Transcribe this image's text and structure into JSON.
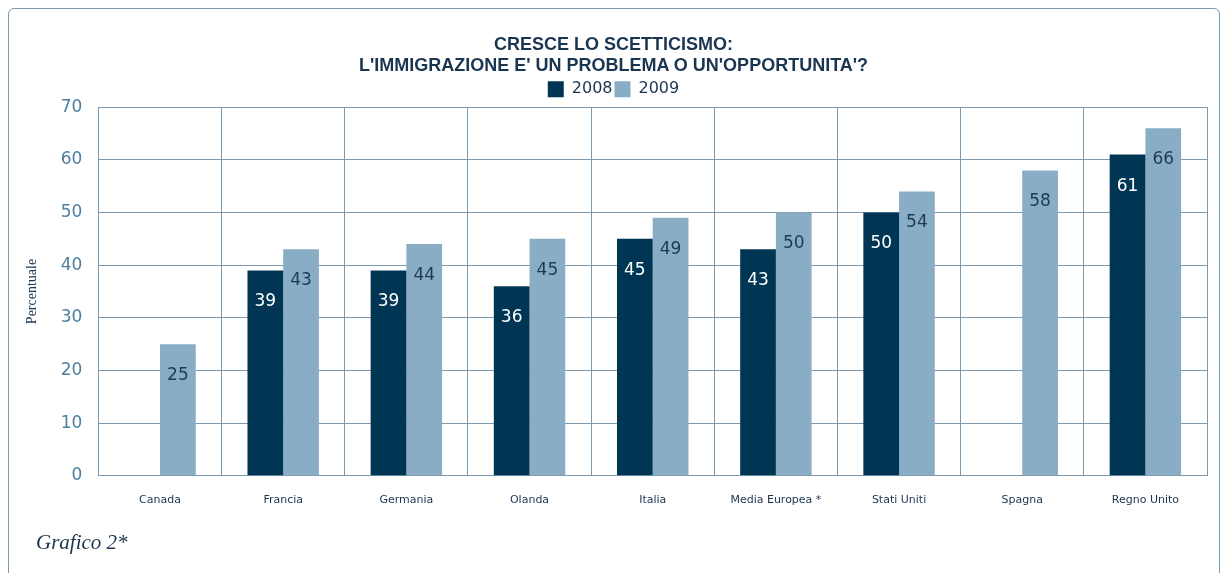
{
  "chart_data": {
    "type": "bar",
    "title": "CRESCE LO SCETTICISMO:\nL'IMMIGRAZIONE E' UN PROBLEMA O UN'OPPORTUNITA'?",
    "ylabel": "Percentuale",
    "categories": [
      "Canada",
      "Francia",
      "Germania",
      "Olanda",
      "Italia",
      "Media Europea *",
      "Stati Uniti",
      "Spagna",
      "Regno Unito"
    ],
    "series": [
      {
        "name": "2008",
        "color": "#003654",
        "values": [
          null,
          39,
          39,
          36,
          45,
          43,
          50,
          null,
          61
        ]
      },
      {
        "name": "2009",
        "color": "#8aadc6",
        "values": [
          25,
          43,
          44,
          45,
          49,
          50,
          54,
          58,
          66
        ]
      }
    ],
    "ylim": [
      0,
      70
    ],
    "yticks": [
      0,
      10,
      20,
      30,
      40,
      50,
      60,
      70
    ],
    "grid": true,
    "legend": "top",
    "data_labels": true,
    "annotations": [
      "Grafico 2*"
    ]
  }
}
